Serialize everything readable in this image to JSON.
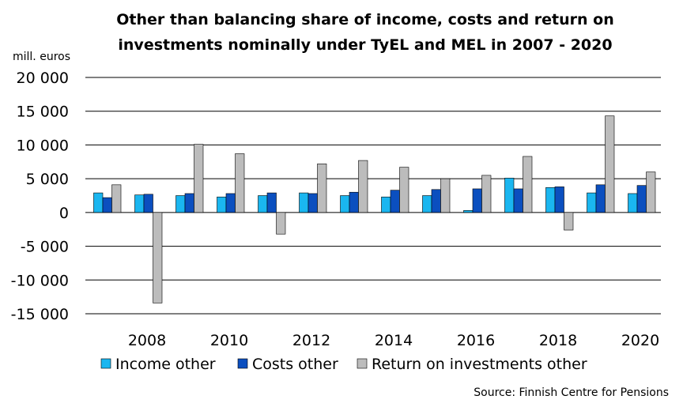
{
  "chart_data": {
    "type": "bar",
    "title_line1": "Other than balancing share of income, costs  and return on",
    "title_line2": "investments nominally under TyEL and MEL in 2007 - 2020",
    "ylabel": "mill. euros",
    "ylim": [
      -15000,
      20000
    ],
    "yticks": [
      20000,
      15000,
      10000,
      5000,
      0,
      -5000,
      -10000,
      -15000
    ],
    "ytick_labels": [
      "20 000",
      "15 000",
      "10 000",
      "5 000",
      "0",
      "-5 000",
      "-10 000",
      "-15 000"
    ],
    "categories": [
      2007,
      2008,
      2009,
      2010,
      2011,
      2012,
      2013,
      2014,
      2015,
      2016,
      2017,
      2018,
      2019,
      2020
    ],
    "xtick_labels": [
      "2008",
      "2010",
      "2012",
      "2014",
      "2016",
      "2018",
      "2020"
    ],
    "series": [
      {
        "name": "Income other",
        "color": "#1ab6f0",
        "values": [
          2900,
          2600,
          2500,
          2300,
          2500,
          2900,
          2500,
          2300,
          2500,
          300,
          5100,
          3700,
          2900,
          2800
        ]
      },
      {
        "name": "Costs other",
        "color": "#0b4fbf",
        "values": [
          2200,
          2700,
          2800,
          2800,
          2900,
          2800,
          3000,
          3300,
          3400,
          3500,
          3500,
          3800,
          4100,
          4000
        ]
      },
      {
        "name": "Return on investments other",
        "color": "#bcbcbc",
        "values": [
          4100,
          -13400,
          10100,
          8700,
          -3200,
          7200,
          7700,
          6700,
          5000,
          5500,
          8300,
          -2600,
          14300,
          6000
        ]
      }
    ],
    "legend_position": "bottom",
    "source": "Source: Finnish Centre for Pensions"
  }
}
